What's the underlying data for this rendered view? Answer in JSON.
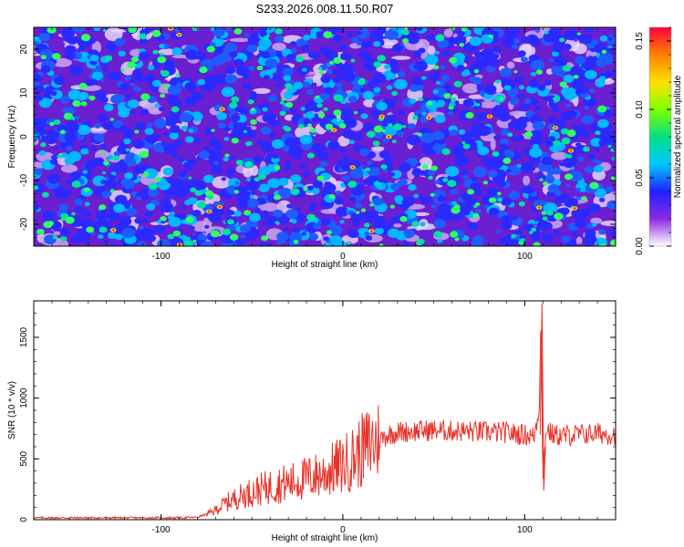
{
  "title": "S233.2026.008.11.50.R07",
  "chart_data": [
    {
      "type": "heatmap",
      "name": "spectrogram",
      "xlabel": "Height of straight line (km)",
      "ylabel": "Frequency (Hz)",
      "xlim": [
        -170,
        150
      ],
      "ylim": [
        -25,
        25
      ],
      "xticks": [
        -100,
        0,
        100
      ],
      "xtick_labels": [
        "-100",
        "0",
        "100"
      ],
      "yticks": [
        -20,
        -10,
        0,
        10,
        20
      ],
      "ytick_labels": [
        "-20",
        "-10",
        "0",
        "10",
        "20"
      ],
      "colorbar": {
        "label": "Normalized spectral amplitude",
        "range": [
          0,
          0.16
        ],
        "ticks": [
          0,
          0.05,
          0.1,
          0.15
        ],
        "tick_labels": [
          "0.00",
          "0.05",
          "0.10",
          "0.15"
        ],
        "colors": [
          "#ffffff",
          "#8a2be2",
          "#2020ff",
          "#00c8ff",
          "#00e080",
          "#80ff00",
          "#ffe000",
          "#ff8000",
          "#ff0040"
        ]
      },
      "description_values": "speckled noise field, mean amplitude ~0.02-0.04, isolated peaks up to ~0.16"
    },
    {
      "type": "line",
      "name": "snr",
      "xlabel": "Height of straight line (km)",
      "ylabel": "SNR (10 * v/v)",
      "xlim": [
        -170,
        150
      ],
      "ylim": [
        0,
        1800
      ],
      "xticks": [
        -100,
        0,
        100
      ],
      "xtick_labels": [
        "-100",
        "0",
        "100"
      ],
      "yticks": [
        0,
        500,
        1000,
        1500
      ],
      "ytick_labels": [
        "0",
        "500",
        "1000",
        "1500"
      ],
      "color": "#e8332a",
      "series": [
        {
          "name": "SNR",
          "x": [
            -170,
            -150,
            -130,
            -110,
            -90,
            -80,
            -72,
            -65,
            -60,
            -55,
            -50,
            -45,
            -40,
            -35,
            -30,
            -25,
            -20,
            -15,
            -10,
            -5,
            0,
            5,
            10,
            15,
            20,
            25,
            30,
            40,
            50,
            60,
            70,
            80,
            90,
            100,
            105,
            108,
            109,
            110,
            111,
            112,
            115,
            120,
            130,
            140,
            150
          ],
          "y": [
            15,
            15,
            15,
            15,
            15,
            20,
            60,
            130,
            170,
            200,
            230,
            250,
            270,
            290,
            300,
            320,
            340,
            360,
            380,
            420,
            450,
            500,
            560,
            620,
            660,
            700,
            720,
            730,
            735,
            730,
            725,
            720,
            715,
            700,
            680,
            900,
            1780,
            250,
            600,
            750,
            700,
            690,
            700,
            710,
            700
          ]
        }
      ]
    }
  ],
  "colors": {
    "line": "#e8332a",
    "axis": "#000000"
  }
}
